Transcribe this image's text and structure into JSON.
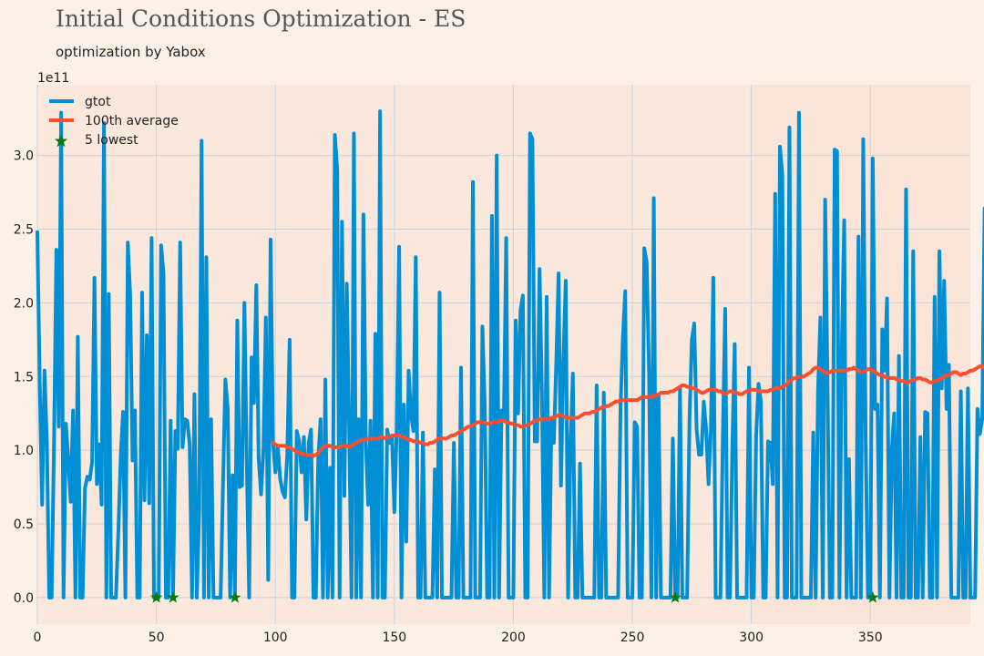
{
  "title": "Initial Conditions Optimization - ES",
  "subtitle": "optimization by Yabox",
  "chart_data": {
    "type": "line",
    "offset_text": "1e11",
    "xlim": [
      0,
      392
    ],
    "ylim": [
      -0.18,
      3.48
    ],
    "y_scale_note": "values in units of 1e11",
    "x_ticks": [
      "0",
      "50",
      "100",
      "150",
      "200",
      "250",
      "300",
      "350"
    ],
    "y_ticks": [
      "0.0",
      "0.5",
      "1.0",
      "1.5",
      "2.0",
      "2.5",
      "3.0"
    ],
    "grid": true,
    "legend_position": "top-left",
    "colors": {
      "gtot": "#008fd5",
      "average": "#fc4f30",
      "lowest": "#0a7a0a",
      "plot_bg": "#fbe8dc",
      "page_bg": "#fdf0e6",
      "grid": "#cbd2dc"
    },
    "series": [
      {
        "name": "gtot",
        "style": "line",
        "x_start": 0,
        "values": [
          2.48,
          1.45,
          0.63,
          1.54,
          1.05,
          0.0,
          0.0,
          1.05,
          2.36,
          1.16,
          3.29,
          0.0,
          1.18,
          0.94,
          0.65,
          1.27,
          0.0,
          1.77,
          0.0,
          0.0,
          0.74,
          0.82,
          0.8,
          0.92,
          2.17,
          0.77,
          1.04,
          0.63,
          3.22,
          0.0,
          2.06,
          0.0,
          0.0,
          0.0,
          0.43,
          0.95,
          1.26,
          0.0,
          2.41,
          2.05,
          0.93,
          1.27,
          0.0,
          0.0,
          2.07,
          0.66,
          1.78,
          0.64,
          2.44,
          0.0,
          0.0,
          0.0,
          2.39,
          2.2,
          0.0,
          0.0,
          1.2,
          0.0,
          1.13,
          1.01,
          2.41,
          1.02,
          1.21,
          1.2,
          1.04,
          0.0,
          1.38,
          0.0,
          0.59,
          3.1,
          0.0,
          2.31,
          0.0,
          1.21,
          0.0,
          0.0,
          0.0,
          0.0,
          0.77,
          1.48,
          1.28,
          0.0,
          0.83,
          0.0,
          1.88,
          0.75,
          0.76,
          2.0,
          0.91,
          0.0,
          1.63,
          1.32,
          2.12,
          0.94,
          0.7,
          1.01,
          1.9,
          0.12,
          2.43,
          1.06,
          0.85,
          1.03,
          0.81,
          0.72,
          0.68,
          0.97,
          1.75,
          0.0,
          0.0,
          1.13,
          1.06,
          0.85,
          1.09,
          0.53,
          1.05,
          1.14,
          0.0,
          0.0,
          0.94,
          1.21,
          0.0,
          1.48,
          0.0,
          0.88,
          0.0,
          3.14,
          2.9,
          0.0,
          2.55,
          0.69,
          2.13,
          1.15,
          0.0,
          3.15,
          0.0,
          1.21,
          0.0,
          2.6,
          1.06,
          0.63,
          1.2,
          0.0,
          1.79,
          0.0,
          3.3,
          0.0,
          0.0,
          1.14,
          1.05,
          1.09,
          0.58,
          1.15,
          2.38,
          0.0,
          1.31,
          0.38,
          1.54,
          1.24,
          1.13,
          2.31,
          0.0,
          0.0,
          1.12,
          0.0,
          0.0,
          0.0,
          0.0,
          0.87,
          0.0,
          2.07,
          0.0,
          0.0,
          0.0,
          0.0,
          0.0,
          1.05,
          0.0,
          0.0,
          1.56,
          0.0,
          0.0,
          0.0,
          0.0,
          2.82,
          0.0,
          0.0,
          0.0,
          1.84,
          1.29,
          0.0,
          0.0,
          2.59,
          0.0,
          3.0,
          0.0,
          1.27,
          1.2,
          2.44,
          0.0,
          0.0,
          0.0,
          1.88,
          1.25,
          1.95,
          2.05,
          0.0,
          0.0,
          3.15,
          3.11,
          1.06,
          1.06,
          2.23,
          1.39,
          0.0,
          2.04,
          0.0,
          1.22,
          1.05,
          1.58,
          2.2,
          0.76,
          1.6,
          2.15,
          0.0,
          1.04,
          1.52,
          0.0,
          0.0,
          0.91,
          0.0,
          0.0,
          0.0,
          0.0,
          0.0,
          0.0,
          1.44,
          0.0,
          0.0,
          1.39,
          0.0,
          0.0,
          0.0,
          0.0,
          0.0,
          0.0,
          1.27,
          1.76,
          2.08,
          0.0,
          0.0,
          0.0,
          1.19,
          1.16,
          0.0,
          0.0,
          2.37,
          2.28,
          1.54,
          0.0,
          2.71,
          0.0,
          1.37,
          0.0,
          0.0,
          0.0,
          0.0,
          0.0,
          1.08,
          0.0,
          0.0,
          1.42,
          0.0,
          0.0,
          0.0,
          1.21,
          1.75,
          1.86,
          1.14,
          0.97,
          0.97,
          1.33,
          1.14,
          0.77,
          1.15,
          2.17,
          0.0,
          0.0,
          0.0,
          1.08,
          1.96,
          0.0,
          0.0,
          1.02,
          1.72,
          0.0,
          0.0,
          0.0,
          0.0,
          0.0,
          1.56,
          0.0,
          0.0,
          1.09,
          1.45,
          1.33,
          0.0,
          0.0,
          1.06,
          1.05,
          0.77,
          2.74,
          0.0,
          3.06,
          2.87,
          0.0,
          0.0,
          3.19,
          0.0,
          0.0,
          0.0,
          3.29,
          0.0,
          0.0,
          0.0,
          0.0,
          0.0,
          1.12,
          0.0,
          1.4,
          1.9,
          0.0,
          2.7,
          1.44,
          0.0,
          0.0,
          3.04,
          3.03,
          0.0,
          1.71,
          2.56,
          0.0,
          0.94,
          0.0,
          0.0,
          0.0,
          2.45,
          0.0,
          3.11,
          1.1,
          0.0,
          0.0,
          2.98,
          1.28,
          1.31,
          0.0,
          1.82,
          1.54,
          2.03,
          0.0,
          1.0,
          1.25,
          0.0,
          1.64,
          0.0,
          0.0,
          2.77,
          0.0,
          0.0,
          2.35,
          0.0,
          0.0,
          1.09,
          0.0,
          1.26,
          1.25,
          0.0,
          0.0,
          2.04,
          0.0,
          2.35,
          1.42,
          2.15,
          1.28,
          1.58,
          0.0,
          0.0,
          0.0,
          0.0,
          1.4,
          0.0,
          0.0,
          1.42,
          0.0,
          0.0,
          0.0,
          1.28,
          1.11,
          1.21,
          2.64,
          1.0,
          1.03,
          1.26,
          0.0,
          1.2
        ]
      },
      {
        "name": "100th average",
        "style": "line",
        "x_start": 99,
        "values": [
          1.05,
          1.04,
          1.03,
          1.03,
          1.03,
          1.03,
          1.02,
          1.02,
          1.01,
          1.0,
          0.99,
          0.98,
          0.98,
          0.97,
          0.97,
          0.97,
          0.97,
          0.96,
          0.97,
          0.98,
          1.0,
          1.02,
          1.03,
          1.03,
          1.03,
          1.02,
          1.02,
          1.02,
          1.02,
          1.03,
          1.03,
          1.03,
          1.02,
          1.03,
          1.04,
          1.05,
          1.06,
          1.07,
          1.07,
          1.07,
          1.08,
          1.08,
          1.08,
          1.08,
          1.08,
          1.09,
          1.09,
          1.08,
          1.09,
          1.09,
          1.1,
          1.1,
          1.1,
          1.1,
          1.09,
          1.09,
          1.08,
          1.07,
          1.07,
          1.06,
          1.06,
          1.06,
          1.05,
          1.05,
          1.04,
          1.04,
          1.05,
          1.05,
          1.06,
          1.07,
          1.08,
          1.08,
          1.08,
          1.08,
          1.09,
          1.1,
          1.1,
          1.11,
          1.12,
          1.13,
          1.14,
          1.15,
          1.16,
          1.16,
          1.17,
          1.18,
          1.19,
          1.19,
          1.19,
          1.19,
          1.18,
          1.18,
          1.19,
          1.19,
          1.19,
          1.2,
          1.2,
          1.2,
          1.19,
          1.19,
          1.18,
          1.18,
          1.17,
          1.17,
          1.16,
          1.16,
          1.17,
          1.17,
          1.18,
          1.19,
          1.2,
          1.2,
          1.21,
          1.21,
          1.21,
          1.21,
          1.21,
          1.22,
          1.22,
          1.23,
          1.24,
          1.24,
          1.23,
          1.22,
          1.22,
          1.22,
          1.22,
          1.22,
          1.22,
          1.23,
          1.24,
          1.25,
          1.25,
          1.25,
          1.26,
          1.26,
          1.27,
          1.28,
          1.29,
          1.29,
          1.3,
          1.3,
          1.31,
          1.32,
          1.33,
          1.33,
          1.34,
          1.34,
          1.34,
          1.34,
          1.34,
          1.34,
          1.34,
          1.34,
          1.35,
          1.36,
          1.36,
          1.36,
          1.36,
          1.36,
          1.37,
          1.37,
          1.38,
          1.39,
          1.39,
          1.39,
          1.39,
          1.4,
          1.4,
          1.41,
          1.42,
          1.43,
          1.44,
          1.44,
          1.43,
          1.43,
          1.42,
          1.42,
          1.41,
          1.4,
          1.39,
          1.39,
          1.4,
          1.41,
          1.41,
          1.41,
          1.41,
          1.4,
          1.4,
          1.39,
          1.38,
          1.39,
          1.4,
          1.4,
          1.39,
          1.39,
          1.38,
          1.38,
          1.39,
          1.4,
          1.4,
          1.41,
          1.41,
          1.41,
          1.4,
          1.4,
          1.4,
          1.4,
          1.4,
          1.41,
          1.41,
          1.42,
          1.42,
          1.42,
          1.43,
          1.44,
          1.45,
          1.47,
          1.48,
          1.49,
          1.49,
          1.5,
          1.5,
          1.5,
          1.51,
          1.52,
          1.53,
          1.55,
          1.56,
          1.56,
          1.55,
          1.54,
          1.53,
          1.52,
          1.53,
          1.54,
          1.54,
          1.54,
          1.54,
          1.54,
          1.54,
          1.54,
          1.55,
          1.55,
          1.56,
          1.55,
          1.54,
          1.53,
          1.53,
          1.54,
          1.55,
          1.55,
          1.54,
          1.53,
          1.52,
          1.51,
          1.51,
          1.5,
          1.49,
          1.49,
          1.49,
          1.49,
          1.48,
          1.48,
          1.47,
          1.47,
          1.46,
          1.46,
          1.47,
          1.48,
          1.48,
          1.49,
          1.49,
          1.48,
          1.48,
          1.47,
          1.46,
          1.46,
          1.47,
          1.47,
          1.48,
          1.49,
          1.5,
          1.51,
          1.51,
          1.52,
          1.53,
          1.53,
          1.52,
          1.51,
          1.52,
          1.52,
          1.53,
          1.54,
          1.54,
          1.55,
          1.56,
          1.57,
          1.57,
          1.56,
          1.55,
          1.54,
          1.54,
          1.55,
          1.55,
          1.54,
          1.54,
          1.53,
          1.53,
          1.52,
          1.52,
          1.52,
          1.53,
          1.54,
          1.55,
          1.56,
          1.56,
          1.55,
          1.55,
          1.54,
          1.53,
          1.53
        ]
      },
      {
        "name": "5 lowest",
        "style": "marker",
        "x": [
          50,
          57,
          83,
          268,
          351
        ],
        "values": [
          0.0,
          0.0,
          0.0,
          0.0,
          0.0
        ]
      }
    ],
    "legend": [
      "gtot",
      "100th average",
      "5 lowest"
    ]
  }
}
